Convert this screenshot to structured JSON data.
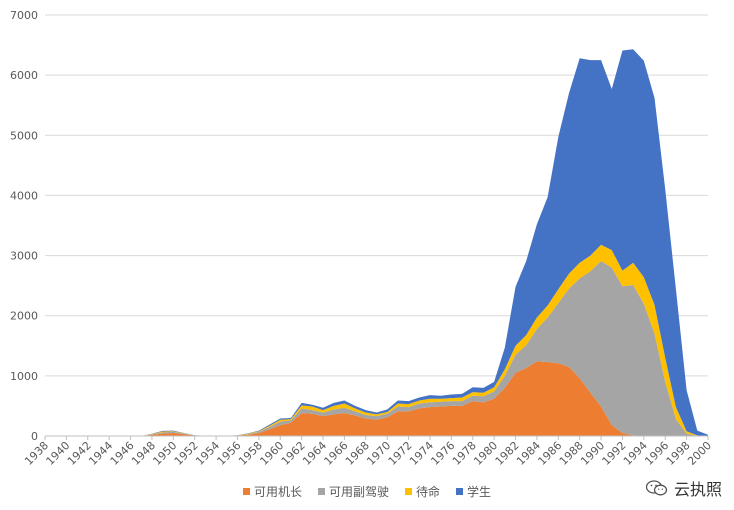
{
  "chart_data": {
    "type": "area",
    "stacked": true,
    "ylim": [
      0,
      7000
    ],
    "yticks": [
      0,
      1000,
      2000,
      3000,
      4000,
      5000,
      6000,
      7000
    ],
    "xticks": [
      "1938",
      "1940",
      "1942",
      "1944",
      "1946",
      "1948",
      "1950",
      "1952",
      "1954",
      "1956",
      "1958",
      "1960",
      "1962",
      "1964",
      "1966",
      "1968",
      "1970",
      "1972",
      "1974",
      "1976",
      "1978",
      "1980",
      "1982",
      "1984",
      "1986",
      "1988",
      "1990",
      "1992",
      "1994",
      "1996",
      "1998",
      "2000"
    ],
    "grid": "horizontal",
    "legend": "bottom",
    "x": [
      1938,
      1939,
      1940,
      1941,
      1942,
      1943,
      1944,
      1945,
      1946,
      1947,
      1948,
      1949,
      1950,
      1951,
      1952,
      1953,
      1954,
      1955,
      1956,
      1957,
      1958,
      1959,
      1960,
      1961,
      1962,
      1963,
      1964,
      1965,
      1966,
      1967,
      1968,
      1969,
      1970,
      1971,
      1972,
      1973,
      1974,
      1975,
      1976,
      1977,
      1978,
      1979,
      1980,
      1981,
      1982,
      1983,
      1984,
      1985,
      1986,
      1987,
      1988,
      1989,
      1990,
      1991,
      1992,
      1993,
      1994,
      1995,
      1996,
      1997,
      1998,
      1999,
      2000
    ],
    "series": [
      {
        "name": "可用机长",
        "color": "#ED7D31",
        "values": [
          0,
          0,
          0,
          0,
          0,
          0,
          0,
          0,
          0,
          0,
          20,
          40,
          50,
          30,
          10,
          0,
          0,
          0,
          10,
          20,
          50,
          110,
          180,
          220,
          380,
          370,
          330,
          360,
          380,
          340,
          290,
          270,
          310,
          410,
          410,
          460,
          480,
          490,
          500,
          500,
          580,
          560,
          620,
          800,
          1050,
          1130,
          1240,
          1230,
          1210,
          1150,
          960,
          720,
          490,
          180,
          50,
          10,
          0,
          0,
          0,
          0,
          0,
          0,
          0
        ]
      },
      {
        "name": "可用副驾驶",
        "color": "#A5A5A5",
        "values": [
          0,
          0,
          0,
          0,
          0,
          0,
          0,
          0,
          0,
          0,
          10,
          20,
          20,
          10,
          5,
          0,
          0,
          0,
          5,
          10,
          20,
          40,
          60,
          40,
          80,
          60,
          60,
          80,
          90,
          70,
          60,
          60,
          60,
          80,
          70,
          80,
          80,
          80,
          80,
          80,
          90,
          100,
          120,
          200,
          300,
          380,
          540,
          740,
          1000,
          1300,
          1660,
          2020,
          2420,
          2620,
          2440,
          2500,
          2200,
          1700,
          900,
          280,
          40,
          5,
          0
        ]
      },
      {
        "name": "待命",
        "color": "#FFC000",
        "values": [
          0,
          0,
          0,
          0,
          0,
          0,
          0,
          0,
          0,
          0,
          5,
          15,
          10,
          5,
          0,
          0,
          0,
          0,
          0,
          10,
          10,
          20,
          30,
          20,
          50,
          60,
          40,
          60,
          70,
          50,
          40,
          30,
          30,
          50,
          50,
          50,
          60,
          50,
          50,
          60,
          60,
          60,
          70,
          110,
          150,
          170,
          190,
          200,
          230,
          250,
          260,
          260,
          270,
          290,
          260,
          370,
          440,
          480,
          400,
          200,
          40,
          5,
          0
        ]
      },
      {
        "name": "学生",
        "color": "#4472C4",
        "values": [
          0,
          0,
          0,
          0,
          0,
          0,
          0,
          0,
          0,
          0,
          5,
          10,
          10,
          5,
          0,
          0,
          0,
          0,
          0,
          5,
          10,
          20,
          20,
          20,
          40,
          30,
          40,
          50,
          50,
          40,
          40,
          30,
          40,
          50,
          50,
          50,
          60,
          50,
          60,
          60,
          80,
          80,
          90,
          360,
          980,
          1230,
          1550,
          1800,
          2530,
          3000,
          3400,
          3250,
          3070,
          2680,
          3660,
          3550,
          3600,
          3440,
          2800,
          1960,
          680,
          80,
          20
        ]
      }
    ]
  },
  "watermark": {
    "text": "云执照",
    "icon": "wechat-icon"
  }
}
